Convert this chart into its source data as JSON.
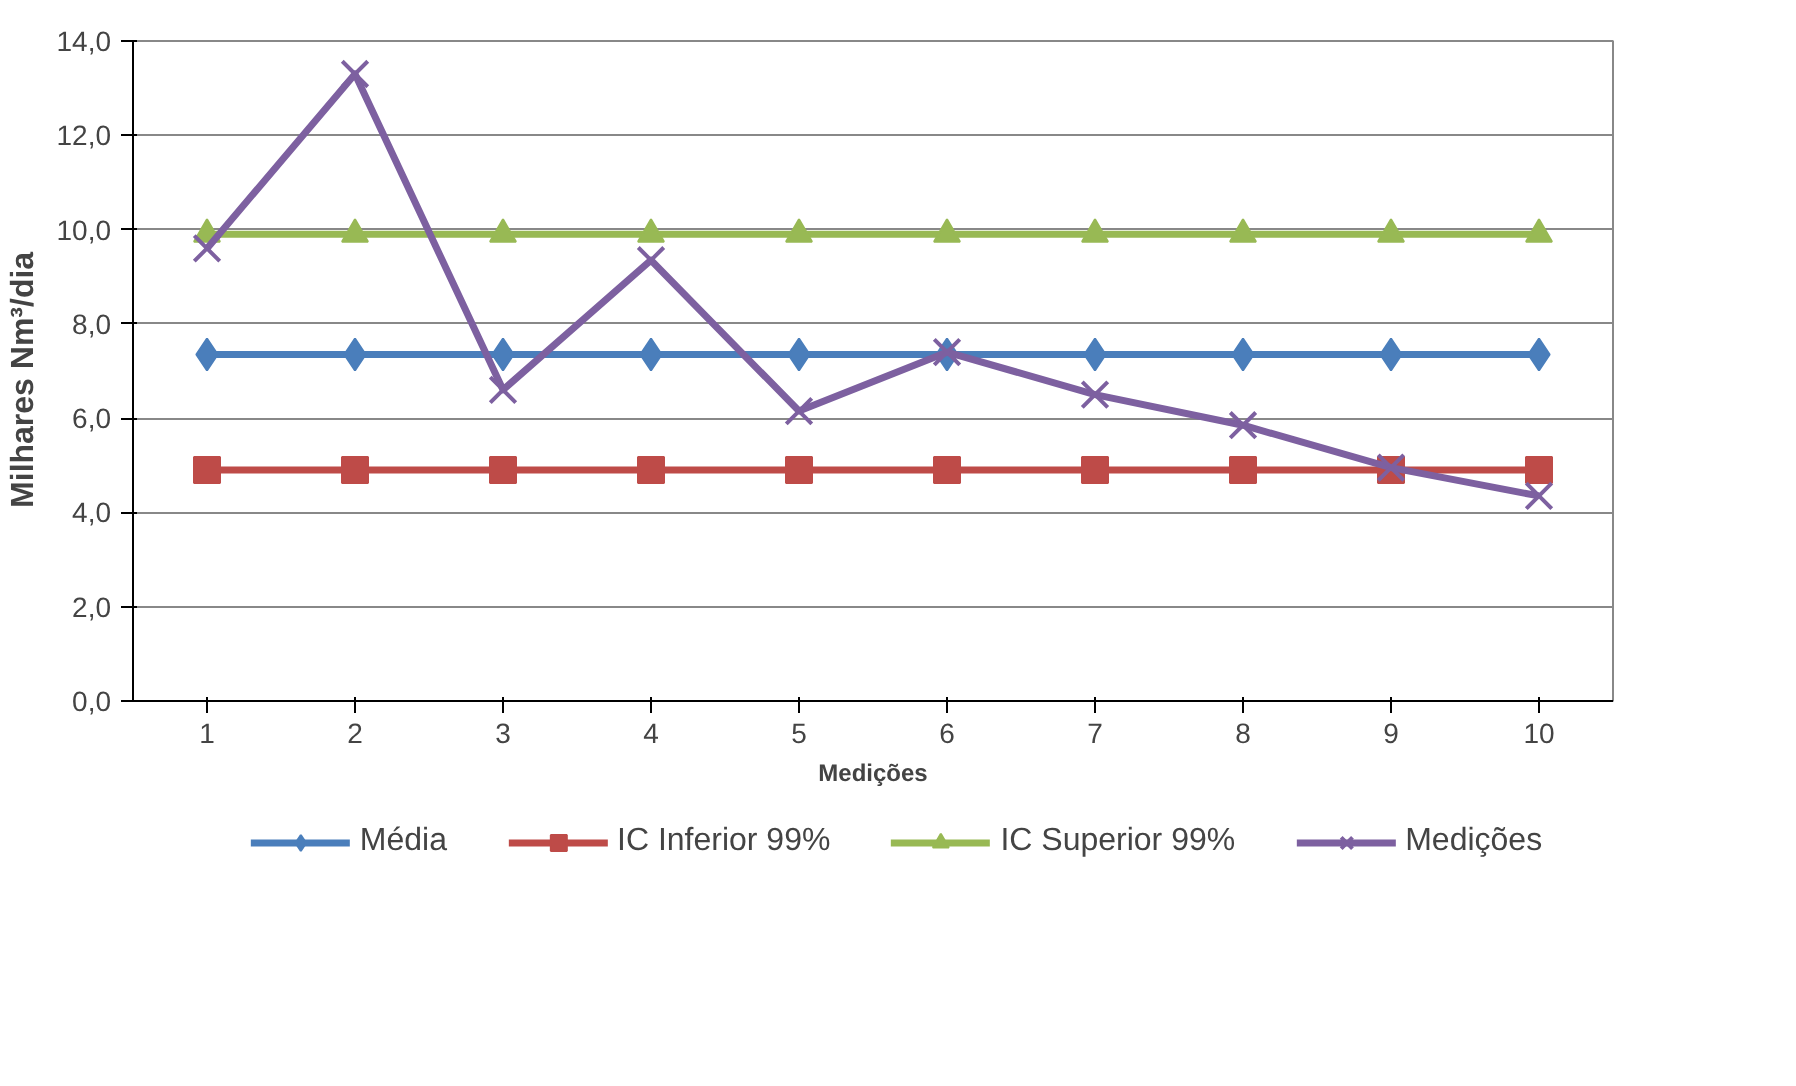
{
  "chart_data": {
    "type": "line",
    "xlabel": "Medições",
    "ylabel": "Milhares   Nm³/dia",
    "categories": [
      "1",
      "2",
      "3",
      "4",
      "5",
      "6",
      "7",
      "8",
      "9",
      "10"
    ],
    "series": [
      {
        "name": "Média",
        "color": "#4a7ebb",
        "marker": "diamond",
        "values": [
          7.35,
          7.35,
          7.35,
          7.35,
          7.35,
          7.35,
          7.35,
          7.35,
          7.35,
          7.35
        ]
      },
      {
        "name": "IC Inferior 99%",
        "color": "#be4b48",
        "marker": "square",
        "values": [
          4.9,
          4.9,
          4.9,
          4.9,
          4.9,
          4.9,
          4.9,
          4.9,
          4.9,
          4.9
        ]
      },
      {
        "name": "IC Superior 99%",
        "color": "#98b954",
        "marker": "triangle",
        "values": [
          9.9,
          9.9,
          9.9,
          9.9,
          9.9,
          9.9,
          9.9,
          9.9,
          9.9,
          9.9
        ]
      },
      {
        "name": "Medições",
        "color": "#7d60a0",
        "marker": "cross",
        "values": [
          9.6,
          13.3,
          6.6,
          9.35,
          6.15,
          7.4,
          6.5,
          5.85,
          4.95,
          4.35
        ]
      }
    ],
    "ylim": [
      0,
      14
    ],
    "yticks": [
      {
        "value": 0,
        "label": "0,0"
      },
      {
        "value": 2,
        "label": "2,0"
      },
      {
        "value": 4,
        "label": "4,0"
      },
      {
        "value": 6,
        "label": "6,0"
      },
      {
        "value": 8,
        "label": "8,0"
      },
      {
        "value": 10,
        "label": "10,0"
      },
      {
        "value": 12,
        "label": "12,0"
      },
      {
        "value": 14,
        "label": "14,0"
      }
    ],
    "grid": "y",
    "legend": "bottom",
    "line_style": "solid"
  }
}
